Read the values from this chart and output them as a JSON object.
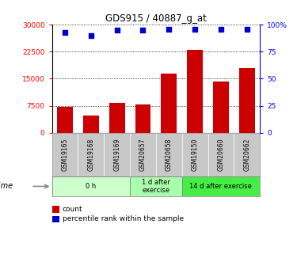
{
  "title": "GDS915 / 40887_g_at",
  "samples": [
    "GSM19165",
    "GSM19168",
    "GSM19169",
    "GSM20657",
    "GSM20658",
    "GSM19150",
    "GSM20660",
    "GSM20662"
  ],
  "counts": [
    7200,
    4800,
    8200,
    7800,
    16500,
    23000,
    14200,
    18000
  ],
  "percentile_ranks": [
    93,
    90,
    95,
    95,
    96,
    96,
    96,
    96
  ],
  "groups": [
    {
      "label": "0 h",
      "start": 0,
      "end": 3,
      "color": "#ccffcc"
    },
    {
      "label": "1 d after\nexercise",
      "start": 3,
      "end": 5,
      "color": "#aaffaa"
    },
    {
      "label": "14 d after exercise",
      "start": 5,
      "end": 8,
      "color": "#44ee44"
    }
  ],
  "ylim_left": [
    0,
    30000
  ],
  "ylim_right": [
    0,
    100
  ],
  "yticks_left": [
    0,
    7500,
    15000,
    22500,
    30000
  ],
  "ytick_labels_left": [
    "0",
    "7500",
    "15000",
    "22500",
    "30000"
  ],
  "yticks_right": [
    0,
    25,
    50,
    75,
    100
  ],
  "ytick_labels_right": [
    "0",
    "25",
    "50",
    "75",
    "100%"
  ],
  "bar_color": "#cc0000",
  "dot_color": "#0000cc",
  "sample_bg_color": "#c8c8c8",
  "legend_count_label": "count",
  "legend_pct_label": "percentile rank within the sample"
}
